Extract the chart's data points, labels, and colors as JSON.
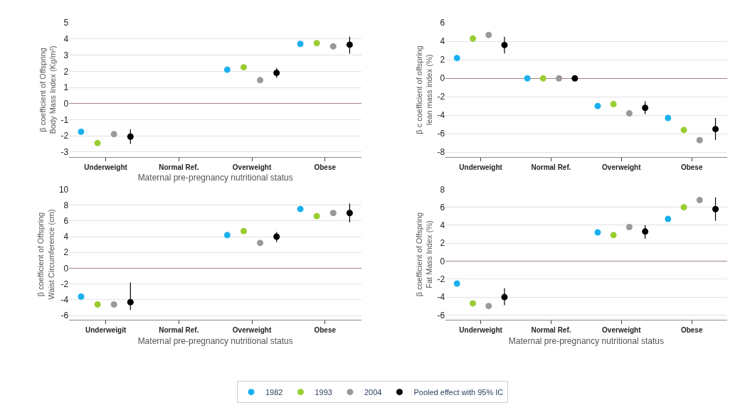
{
  "chart_data": [
    {
      "type": "scatter",
      "ylabel": "β coefficient of Offspring Body Mass Index (Kg/m²)",
      "xlabel": "Maternal pre-pregnancy nutritional status",
      "categories": [
        "Underweight",
        "Normal Ref.",
        "Overweight",
        "Obese"
      ],
      "ylim": [
        -3.3,
        5
      ],
      "yticks": [
        -3,
        -2,
        -1,
        0,
        1,
        2,
        3,
        4,
        5
      ],
      "grid": "y",
      "marker": "circle",
      "legend": "bottom",
      "series": [
        {
          "name": "1982",
          "color": "#1ab0f0",
          "values": [
            -1.75,
            null,
            2.1,
            3.7
          ]
        },
        {
          "name": "1993",
          "color": "#9acd32",
          "values": [
            -2.45,
            null,
            2.25,
            3.75
          ]
        },
        {
          "name": "2004",
          "color": "#999999",
          "values": [
            -1.9,
            null,
            1.45,
            3.55
          ]
        },
        {
          "name": "Pooled effect with 95% IC",
          "color": "#000000",
          "values": [
            -2.05,
            null,
            1.9,
            3.65
          ],
          "errors": [
            [
              -2.5,
              -1.6
            ],
            null,
            [
              1.6,
              2.2
            ],
            [
              3.1,
              4.15
            ]
          ]
        }
      ]
    },
    {
      "type": "scatter",
      "ylabel": "β c coefficient of offspring lean mass index (%)",
      "categories": [
        "Underweight",
        "Normal Ref.",
        "Overweight",
        "Obese"
      ],
      "ylim": [
        -8.5,
        6
      ],
      "yticks": [
        -8,
        -6,
        -4,
        -2,
        0,
        2,
        4,
        6
      ],
      "grid": "y",
      "marker": "circle",
      "series": [
        {
          "name": "1982",
          "color": "#1ab0f0",
          "values": [
            2.2,
            0,
            -3.0,
            -4.3
          ]
        },
        {
          "name": "1993",
          "color": "#9acd32",
          "values": [
            4.3,
            0,
            -2.8,
            -5.6
          ]
        },
        {
          "name": "2004",
          "color": "#999999",
          "values": [
            4.7,
            0,
            -3.8,
            -6.7
          ]
        },
        {
          "name": "Pooled effect with 95% IC",
          "color": "#000000",
          "values": [
            3.6,
            0,
            -3.2,
            -5.5
          ],
          "errors": [
            [
              2.7,
              4.5
            ],
            null,
            [
              -3.9,
              -2.5
            ],
            [
              -6.7,
              -4.3
            ]
          ]
        }
      ]
    },
    {
      "type": "scatter",
      "ylabel": "β coefficient of Offspring Waist Circumference (cm)",
      "xlabel": "Maternal pre-pregnancy nutritional status",
      "categories": [
        "Underweigit",
        "Normal Ref.",
        "Overweight",
        "Obese"
      ],
      "ylim": [
        -6.5,
        10
      ],
      "yticks": [
        -6,
        -4,
        -2,
        0,
        2,
        4,
        6,
        8,
        10
      ],
      "grid": "y",
      "marker": "circle",
      "series": [
        {
          "name": "1982",
          "color": "#1ab0f0",
          "values": [
            -3.6,
            null,
            4.2,
            7.5
          ]
        },
        {
          "name": "1993",
          "color": "#9acd32",
          "values": [
            -4.6,
            null,
            4.7,
            6.6
          ]
        },
        {
          "name": "2004",
          "color": "#999999",
          "values": [
            -4.6,
            null,
            3.2,
            7.0
          ]
        },
        {
          "name": "Pooled effect with 95% IC",
          "color": "#000000",
          "values": [
            -4.3,
            null,
            4.0,
            7.0
          ],
          "errors": [
            [
              -5.3,
              -1.8
            ],
            null,
            [
              3.3,
              4.6
            ],
            [
              5.8,
              8.2
            ]
          ]
        }
      ]
    },
    {
      "type": "scatter",
      "ylabel": "β coefficient of Offspring Fat Mass Index (%)",
      "xlabel": "Maternal pre-pregnancy nutritional status",
      "categories": [
        "Underweight",
        "Normal Ref.",
        "Overweight",
        "Obese"
      ],
      "ylim": [
        -6.5,
        8
      ],
      "yticks": [
        -6,
        -4,
        -2,
        0,
        2,
        4,
        6,
        8
      ],
      "grid": "y",
      "marker": "circle",
      "series": [
        {
          "name": "1982",
          "color": "#1ab0f0",
          "values": [
            -2.5,
            null,
            3.2,
            4.7
          ]
        },
        {
          "name": "1993",
          "color": "#9acd32",
          "values": [
            -4.7,
            null,
            2.9,
            6.0
          ]
        },
        {
          "name": "2004",
          "color": "#999999",
          "values": [
            -5.0,
            null,
            3.8,
            6.8
          ]
        },
        {
          "name": "Pooled effect with 95% IC",
          "color": "#000000",
          "values": [
            -4.0,
            null,
            3.3,
            5.8
          ],
          "errors": [
            [
              -4.9,
              -3.0
            ],
            null,
            [
              2.5,
              4.0
            ],
            [
              4.5,
              7.1
            ]
          ]
        }
      ]
    }
  ]
}
